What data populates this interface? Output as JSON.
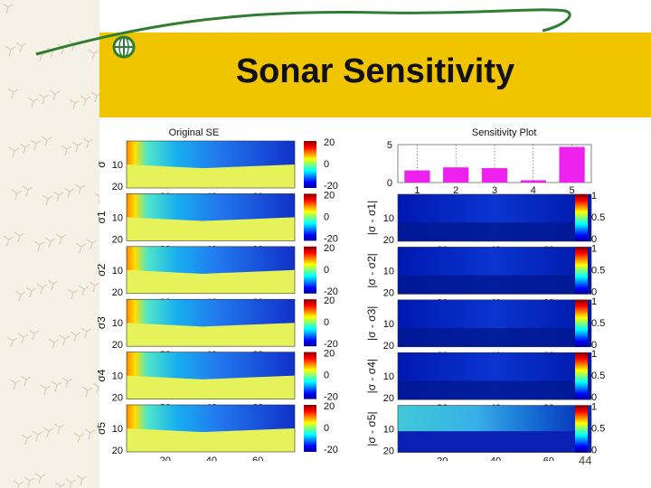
{
  "slide": {
    "title": "Sonar Sensitivity",
    "number": "44"
  },
  "colors": {
    "banner": "#f1c400",
    "swirl": "#2e7d32",
    "bar": "#ee22ee"
  },
  "left_column": {
    "title": "Original SE",
    "y_labels": [
      "σ",
      "σ1",
      "σ2",
      "σ3",
      "σ4",
      "σ5"
    ],
    "y_ticks": [
      "10",
      "20"
    ],
    "x_ticks": [
      "20",
      "40",
      "60"
    ],
    "colorbar_ticks": [
      "20",
      "0",
      "-20"
    ]
  },
  "right_column": {
    "y_labels": [
      "|σ - σ1|",
      "|σ - σ2|",
      "|σ - σ3|",
      "|σ - σ4|",
      "|σ - σ5|"
    ],
    "y_ticks": [
      "10",
      "20"
    ],
    "x_ticks": [
      "20",
      "40",
      "60"
    ],
    "colorbar_ticks": [
      "1",
      "0.5",
      "0"
    ]
  },
  "chart_data": {
    "type": "bar",
    "title": "Sensitivity Plot",
    "categories": [
      "1",
      "2",
      "3",
      "4",
      "5"
    ],
    "values": [
      1.6,
      2.0,
      1.9,
      0.3,
      4.7
    ],
    "yticks": [
      "5",
      "0"
    ],
    "ylim": [
      0,
      5
    ]
  }
}
